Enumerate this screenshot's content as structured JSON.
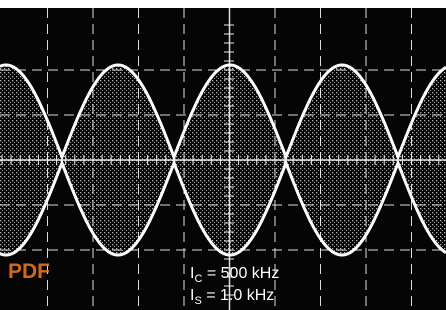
{
  "labels": [
    {
      "main": "I",
      "sub": "C",
      "rest": " = 500 kHz"
    },
    {
      "main": "I",
      "sub": "S",
      "rest": " = 1.0 kHz"
    }
  ],
  "watermark": "PDF"
}
